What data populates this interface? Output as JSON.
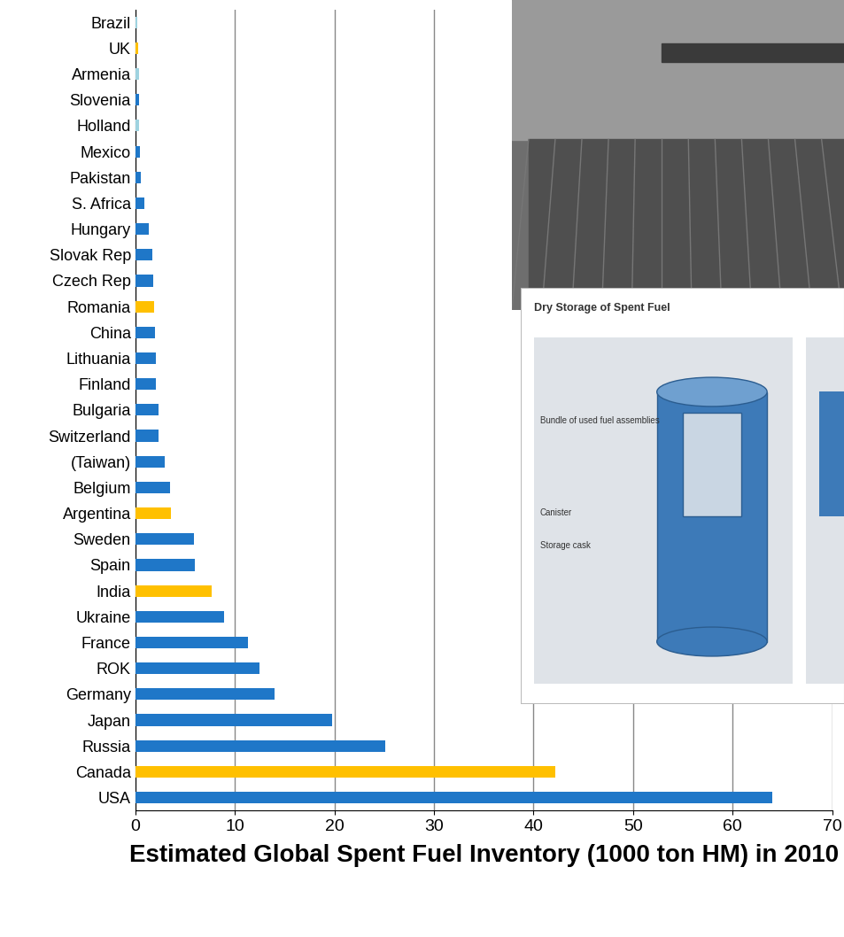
{
  "chart_data": {
    "type": "bar",
    "orientation": "horizontal",
    "xlabel": "Estimated Global Spent Fuel Inventory (1000 ton HM) in 2010",
    "categories": [
      "Brazil",
      "UK",
      "Armenia",
      "Slovenia",
      "Holland",
      "Mexico",
      "Pakistan",
      "S. Africa",
      "Hungary",
      "Slovak Rep",
      "Czech Rep",
      "Romania",
      "China",
      "Lithuania",
      "Finland",
      "Bulgaria",
      "Switzerland",
      "(Taiwan)",
      "Belgium",
      "Argentina",
      "Sweden",
      "Spain",
      "India",
      "Ukraine",
      "France",
      "ROK",
      "Germany",
      "Japan",
      "Russia",
      "Canada",
      "USA"
    ],
    "values": [
      0.2,
      0.3,
      0.4,
      0.4,
      0.4,
      0.5,
      0.6,
      0.9,
      1.4,
      1.7,
      1.8,
      1.9,
      2.0,
      2.1,
      2.1,
      2.3,
      2.3,
      3.0,
      3.5,
      3.6,
      5.9,
      6.0,
      7.7,
      8.9,
      11.3,
      12.5,
      14.0,
      19.8,
      25.1,
      42.2,
      64.0
    ],
    "colors": [
      "#9fd3e0",
      "#ffc000",
      "#9fd3e0",
      "#1f77c8",
      "#9fd3e0",
      "#1f77c8",
      "#1f77c8",
      "#1f77c8",
      "#1f77c8",
      "#1f77c8",
      "#1f77c8",
      "#ffc000",
      "#1f77c8",
      "#1f77c8",
      "#1f77c8",
      "#1f77c8",
      "#1f77c8",
      "#1f77c8",
      "#1f77c8",
      "#ffc000",
      "#1f77c8",
      "#1f77c8",
      "#ffc000",
      "#1f77c8",
      "#1f77c8",
      "#1f77c8",
      "#1f77c8",
      "#1f77c8",
      "#1f77c8",
      "#ffc000",
      "#1f77c8"
    ],
    "xlim": [
      0,
      70
    ],
    "xticks": [
      0,
      10,
      20,
      30,
      40,
      50,
      60,
      70
    ],
    "grid": true,
    "annotations": [
      "Dry Storage of Spent Fuel",
      "Bundle of used fuel assemblies",
      "Canister",
      "Storage cask"
    ]
  }
}
